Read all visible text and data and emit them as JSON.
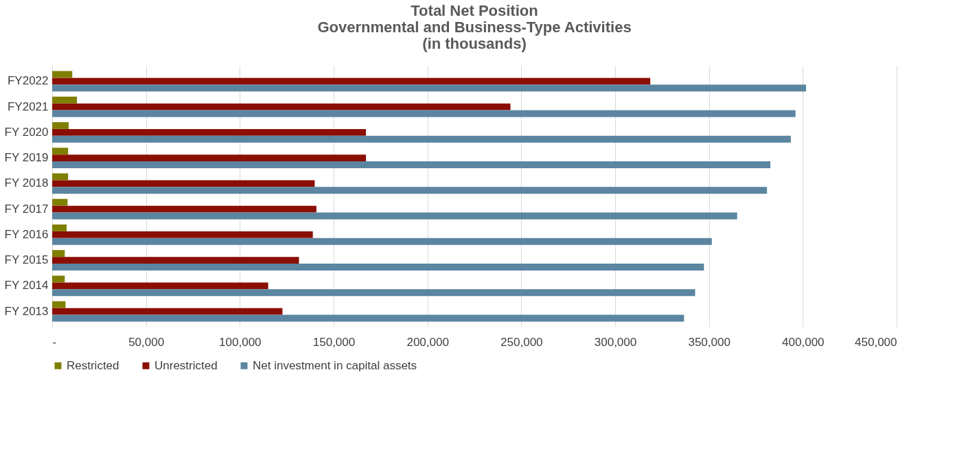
{
  "chart_data": {
    "type": "bar",
    "orientation": "horizontal",
    "title": [
      "Total Net Position",
      "Governmental and Business-Type Activities",
      "(in thousands)"
    ],
    "categories": [
      "FY2022",
      "FY2021",
      "FY 2020",
      "FY 2019",
      "FY 2018",
      "FY 2017",
      "FY 2016",
      "FY 2015",
      "FY 2014",
      "FY 2013"
    ],
    "series": [
      {
        "name": "Restricted",
        "color": "#7f7f00",
        "values": [
          10700,
          13200,
          8800,
          8500,
          8500,
          8200,
          7700,
          6700,
          6700,
          7100
        ]
      },
      {
        "name": "Unrestricted",
        "color": "#8b0e04",
        "values": [
          318700,
          244200,
          167200,
          167200,
          139900,
          140800,
          138900,
          131500,
          115100,
          122700
        ]
      },
      {
        "name": "Net investment in capital assets",
        "color": "#5b85a0",
        "values": [
          401700,
          396100,
          393600,
          382700,
          380900,
          365000,
          351500,
          347300,
          342600,
          336700
        ]
      }
    ],
    "xlim": [
      0,
      450000
    ],
    "xticks": [
      {
        "value": 0,
        "label": "-"
      },
      {
        "value": 50000,
        "label": "50,000"
      },
      {
        "value": 100000,
        "label": "100,000"
      },
      {
        "value": 150000,
        "label": "150,000"
      },
      {
        "value": 200000,
        "label": "200,000"
      },
      {
        "value": 250000,
        "label": "250,000"
      },
      {
        "value": 300000,
        "label": "300,000"
      },
      {
        "value": 350000,
        "label": "350,000"
      },
      {
        "value": 400000,
        "label": "400,000"
      },
      {
        "value": 450000,
        "label": "450,000"
      }
    ],
    "grid": "x",
    "legend": "bottom"
  }
}
